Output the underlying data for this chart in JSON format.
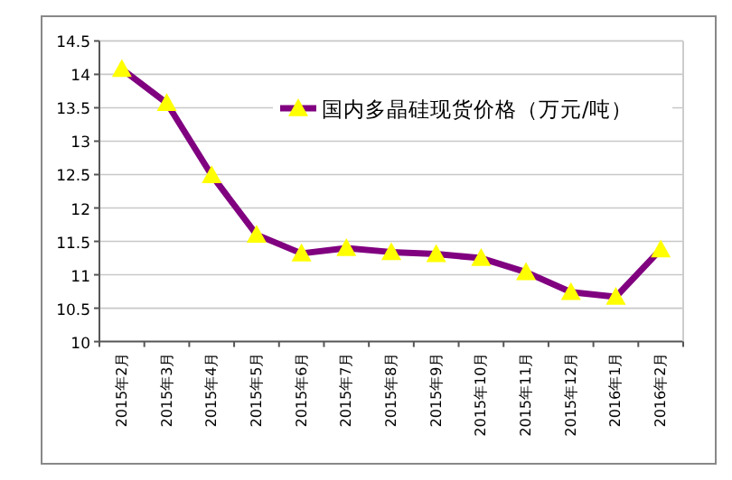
{
  "chart_data": {
    "type": "line",
    "categories": [
      "2015年2月",
      "2015年3月",
      "2015年4月",
      "2015年5月",
      "2015年6月",
      "2015年7月",
      "2015年8月",
      "2015年9月",
      "2015年10月",
      "2015年11月",
      "2015年12月",
      "2016年1月",
      "2016年2月"
    ],
    "series": [
      {
        "name": "国内多晶硅现货价格（万元/吨）",
        "color": "#800080",
        "values": [
          14.08,
          13.57,
          12.49,
          11.6,
          11.32,
          11.4,
          11.34,
          11.31,
          11.25,
          11.04,
          10.74,
          10.67,
          11.38
        ]
      }
    ],
    "ylim": [
      10,
      14.5
    ],
    "yticks": [
      10,
      {
        "value": 10.5,
        "label": "10.5"
      },
      11,
      {
        "value": 11.5,
        "label": "11.5"
      },
      12,
      {
        "value": 12.5,
        "label": "12.5"
      },
      13,
      {
        "value": 13.5,
        "label": "13.5"
      },
      14,
      {
        "value": 14.5,
        "label": "14.5"
      }
    ],
    "grid": "y",
    "legend": "top right",
    "marker": "triangle",
    "line_style": "solid"
  }
}
